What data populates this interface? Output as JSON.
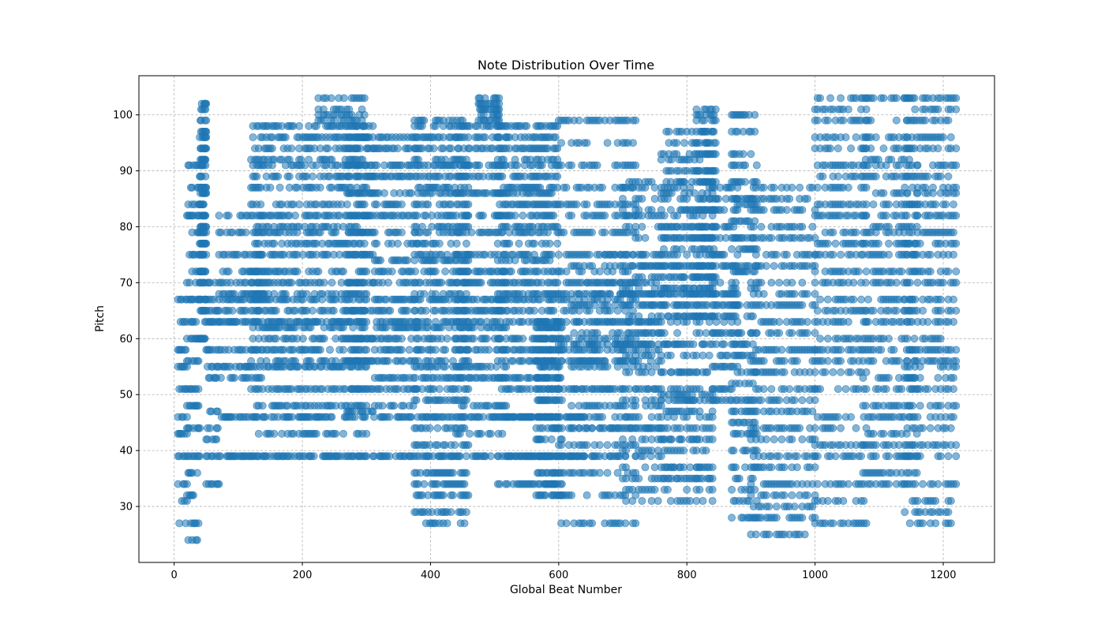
{
  "chart_data": {
    "type": "scatter",
    "title": "Note Distribution Over Time",
    "xlabel": "Global Beat Number",
    "ylabel": "Pitch",
    "xlim": [
      -55,
      1280
    ],
    "ylim": [
      20,
      107
    ],
    "xticks": [
      0,
      200,
      400,
      600,
      800,
      1000,
      1200
    ],
    "yticks": [
      30,
      40,
      50,
      60,
      70,
      80,
      90,
      100
    ],
    "grid": true,
    "marker_color": "#1f77b4",
    "marker_alpha": 0.55,
    "segments": [
      {
        "x": [
          6,
          20
        ],
        "pitches": [
          27,
          31,
          34,
          39,
          43,
          46,
          51,
          55,
          58,
          63,
          67
        ],
        "step": 2
      },
      {
        "x": [
          20,
          40
        ],
        "pitches": [
          24,
          27,
          32,
          36,
          39,
          44,
          48,
          51,
          56,
          60,
          63,
          67,
          70,
          72,
          75,
          79,
          82,
          84,
          87,
          91
        ],
        "step": 2
      },
      {
        "x": [
          40,
          50
        ],
        "pitches": [
          60,
          63,
          65,
          67,
          70,
          72,
          75,
          77,
          79,
          80,
          82,
          84,
          86,
          87,
          89,
          91,
          92,
          94,
          96,
          97,
          99,
          101,
          102
        ],
        "step": 1
      },
      {
        "x": [
          50,
          70
        ],
        "pitches": [
          34,
          39,
          42,
          44,
          47,
          53,
          55,
          58,
          63,
          65,
          67,
          70
        ],
        "step": 2
      },
      {
        "x": [
          70,
          300
        ],
        "pitches": [
          39,
          46,
          55,
          63
        ],
        "step": 2
      },
      {
        "x": [
          70,
          140
        ],
        "pitches": [
          53,
          58,
          65,
          67,
          68,
          70,
          72,
          75,
          79,
          82
        ],
        "step": 3
      },
      {
        "x": [
          120,
          300
        ],
        "pitches": [
          43,
          48,
          51,
          56,
          58,
          60,
          62,
          65,
          67,
          68,
          70,
          72,
          75,
          77,
          79,
          80,
          82,
          84,
          87,
          89,
          91,
          92,
          94,
          96,
          98
        ],
        "step": 3
      },
      {
        "x": [
          225,
          300
        ],
        "pitches": [
          99,
          100,
          101,
          103
        ],
        "step": 4
      },
      {
        "x": [
          270,
          310
        ],
        "pitches": [
          47,
          51,
          56,
          60,
          65,
          70,
          75,
          79,
          82,
          86,
          89,
          91,
          94,
          96,
          98
        ],
        "step": 2
      },
      {
        "x": [
          310,
          640
        ],
        "pitches": [
          39,
          46
        ],
        "step": 2
      },
      {
        "x": [
          310,
          380
        ],
        "pitches": [
          48,
          51,
          53,
          56,
          58,
          60,
          62,
          63,
          65,
          67,
          70,
          72,
          74,
          77,
          79,
          82,
          84,
          86,
          89,
          91,
          94,
          96
        ],
        "step": 3
      },
      {
        "x": [
          375,
          460
        ],
        "pitches": [
          27,
          29,
          32,
          34,
          36,
          41,
          44,
          49,
          51,
          53,
          55,
          56,
          58,
          60,
          62,
          63,
          65,
          67,
          68,
          70,
          72,
          74,
          75,
          77,
          79,
          80,
          82,
          84,
          86,
          87,
          89,
          91,
          92,
          94,
          96,
          98,
          99
        ],
        "step": 3
      },
      {
        "x": [
          440,
          520
        ],
        "pitches": [
          43,
          48,
          53,
          55,
          58,
          60,
          62,
          63,
          65,
          67,
          70,
          72,
          75,
          79,
          82,
          86,
          89,
          91,
          94,
          96,
          98
        ],
        "step": 3
      },
      {
        "x": [
          475,
          510
        ],
        "pitches": [
          99,
          100,
          101,
          102,
          103
        ],
        "step": 2
      },
      {
        "x": [
          505,
          600
        ],
        "pitches": [
          34,
          39,
          46,
          51,
          53,
          56,
          58,
          60,
          63,
          65,
          67,
          68,
          70,
          72,
          74,
          75,
          77,
          79,
          80,
          82,
          84,
          86,
          87,
          89,
          91,
          92,
          94,
          96,
          98
        ],
        "step": 3
      },
      {
        "x": [
          565,
          605
        ],
        "pitches": [
          32,
          34,
          36,
          39,
          42,
          44,
          46,
          49,
          51,
          53,
          55,
          56,
          58,
          60,
          62,
          63
        ],
        "step": 2
      },
      {
        "x": [
          600,
          720
        ],
        "pitches": [
          27,
          32,
          36,
          39,
          41,
          44,
          46,
          51,
          56,
          58,
          59,
          60,
          63,
          65,
          67,
          68,
          70,
          72,
          75,
          79,
          82,
          84,
          87,
          91,
          95,
          99
        ],
        "step": 4
      },
      {
        "x": [
          620,
          760
        ],
        "pitches": [
          39,
          44,
          48,
          51,
          55,
          56,
          58,
          59,
          61,
          63,
          66,
          68,
          70,
          73,
          75
        ],
        "step": 4
      },
      {
        "x": [
          700,
          840
        ],
        "pitches": [
          31,
          33,
          35,
          37,
          40,
          42,
          44,
          46,
          49,
          51,
          54,
          57,
          59,
          61,
          63,
          64,
          66,
          68,
          69,
          71,
          73,
          75,
          78,
          80,
          82,
          83,
          85,
          87,
          88
        ],
        "step": 5
      },
      {
        "x": [
          760,
          840
        ],
        "pitches": [
          35,
          37,
          42,
          47,
          49,
          50,
          54,
          59,
          64,
          66,
          68,
          69,
          71,
          73,
          76,
          78,
          80,
          83,
          86,
          88,
          90,
          92,
          93,
          95,
          97
        ],
        "step": 4
      },
      {
        "x": [
          815,
          845
        ],
        "pitches": [
          64,
          68,
          71,
          73,
          76,
          78,
          80,
          83,
          85,
          88,
          90,
          93,
          95,
          97,
          99,
          100,
          101
        ],
        "step": 3
      },
      {
        "x": [
          840,
          880
        ],
        "pitches": [
          49,
          51,
          55,
          57,
          59,
          61,
          63,
          64,
          66,
          68,
          70,
          73,
          75,
          78,
          80,
          83,
          85,
          87
        ],
        "step": 3
      },
      {
        "x": [
          870,
          910
        ],
        "pitches": [
          28,
          31,
          33,
          35,
          37,
          40,
          43,
          45,
          47,
          49,
          52,
          54,
          57,
          59,
          61,
          64,
          66,
          69,
          72,
          73,
          76,
          78,
          81,
          84,
          85,
          88,
          91,
          93,
          97,
          100
        ],
        "step": 3
      },
      {
        "x": [
          900,
          1000
        ],
        "pitches": [
          25,
          28,
          30,
          32,
          34,
          37,
          39,
          42,
          44,
          47,
          49,
          51,
          54,
          56,
          58,
          61,
          63,
          66,
          68,
          70,
          73,
          75,
          78,
          80,
          83,
          85,
          87
        ],
        "step": 4
      },
      {
        "x": [
          1000,
          1080
        ],
        "pitches": [
          27,
          31,
          34,
          39,
          41,
          44,
          46,
          51,
          54,
          56,
          58,
          60,
          63,
          65,
          67,
          70,
          72,
          75,
          77,
          79,
          82,
          84,
          87,
          89,
          91,
          94,
          96,
          99,
          101,
          103
        ],
        "step": 4
      },
      {
        "x": [
          1075,
          1160
        ],
        "pitches": [
          34,
          36,
          39,
          41,
          43,
          46,
          48,
          51,
          53,
          56,
          58,
          60,
          63,
          65,
          67,
          70,
          72,
          75,
          77,
          79,
          80,
          82,
          84,
          86,
          89,
          91,
          92,
          94,
          96,
          99,
          103
        ],
        "step": 4
      },
      {
        "x": [
          1140,
          1220
        ],
        "pitches": [
          27,
          29,
          31,
          34,
          39,
          41,
          44,
          46,
          48,
          51,
          53,
          55,
          56,
          58,
          60,
          63,
          65,
          67,
          70,
          72,
          75,
          77,
          79,
          82,
          84,
          86,
          87,
          89,
          91,
          94,
          96,
          99,
          101,
          103
        ],
        "step": 4
      }
    ]
  }
}
